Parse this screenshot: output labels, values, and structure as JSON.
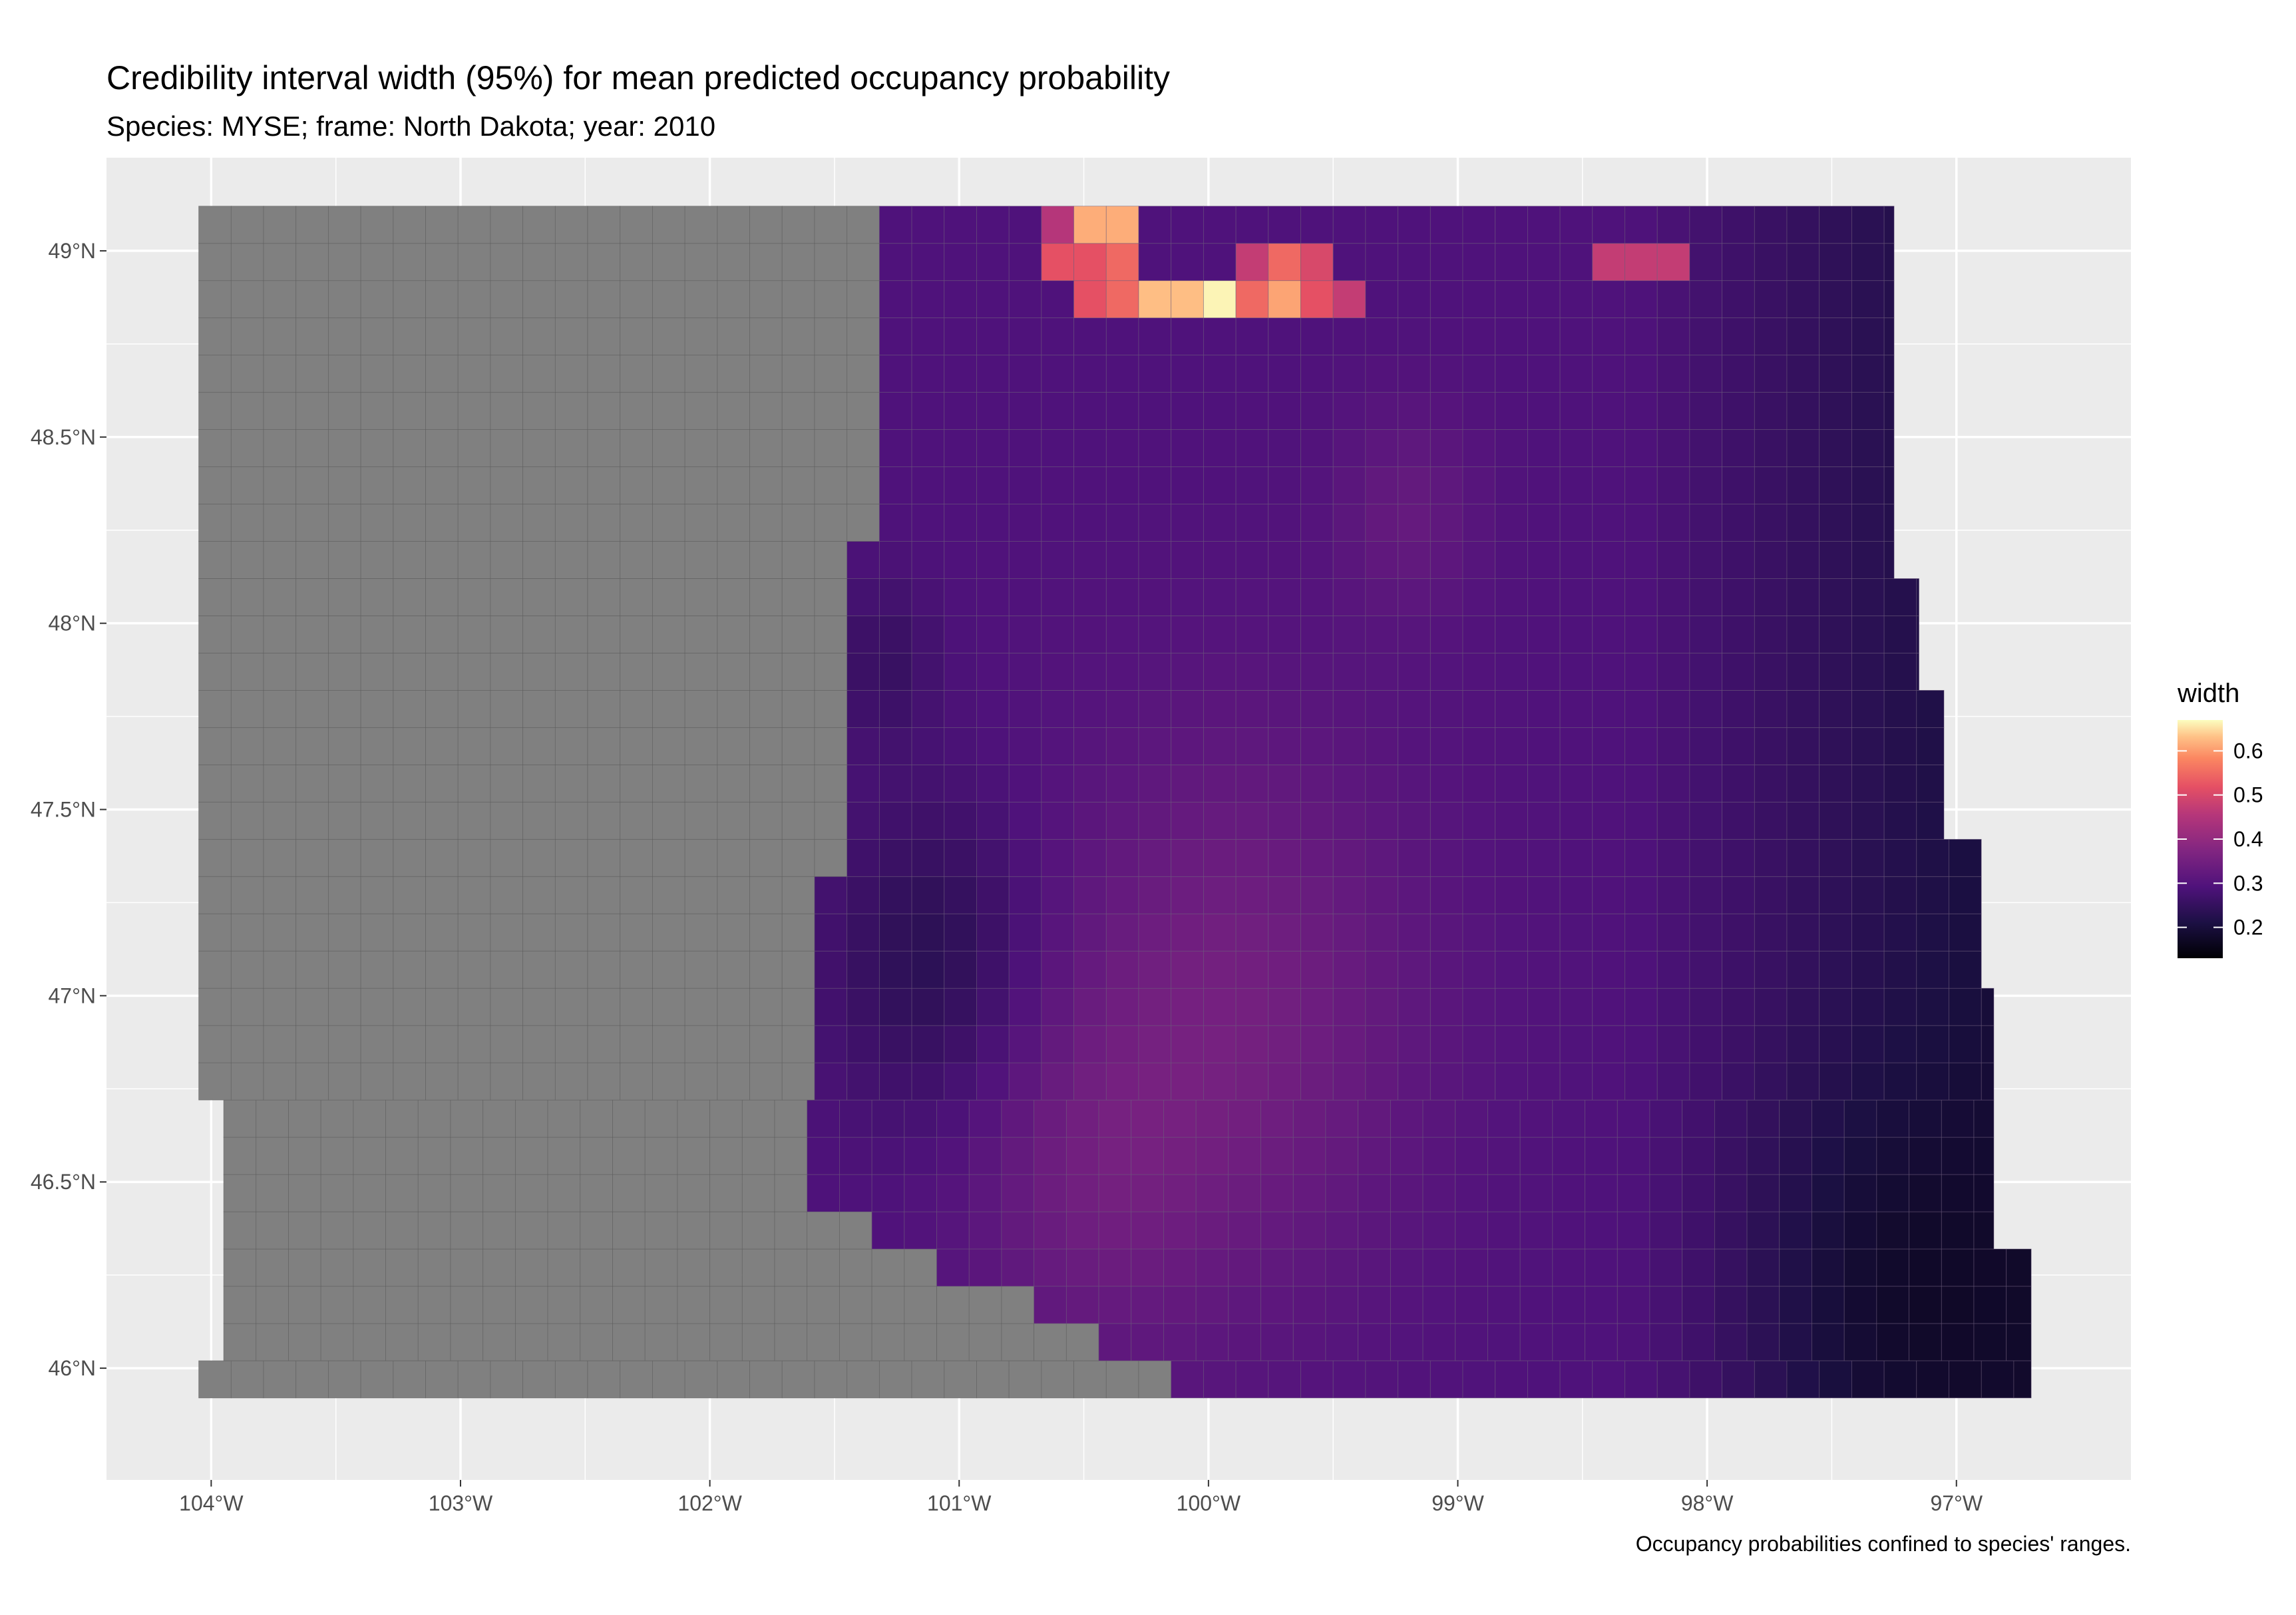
{
  "chart_data": {
    "type": "heatmap",
    "title": "Credibility interval width (95%) for mean predicted occupancy probability",
    "subtitle": "Species: MYSE; frame: North Dakota; year: 2010",
    "caption": "Occupancy probabilities confined to species' ranges.",
    "x_ticks": [
      "104°W",
      "103°W",
      "102°W",
      "101°W",
      "100°W",
      "99°W",
      "98°W",
      "97°W"
    ],
    "x_tick_values": [
      -104,
      -103,
      -102,
      -101,
      -100,
      -99,
      -98,
      -97
    ],
    "y_ticks": [
      "46°N",
      "46.5°N",
      "47°N",
      "47.5°N",
      "48°N",
      "48.5°N",
      "49°N"
    ],
    "y_tick_values": [
      46,
      46.5,
      47,
      47.5,
      48,
      48.5,
      49
    ],
    "xlim": [
      -104.42,
      -96.3
    ],
    "ylim": [
      45.7,
      49.25
    ],
    "grid": true,
    "legend": {
      "title": "width",
      "position": "right",
      "ticks": [
        "0.2",
        "0.3",
        "0.4",
        "0.5",
        "0.6"
      ],
      "tick_values": [
        0.2,
        0.3,
        0.4,
        0.5,
        0.6
      ],
      "range": [
        0.13,
        0.67
      ],
      "colormap": "magma"
    },
    "no_range_color": "#808080",
    "panel_background": "#ebebeb",
    "grid_color": "#ffffff",
    "west_gray_boundary_lon": -101.4,
    "hotspots": [
      {
        "lon": -100.42,
        "lat": 49.05,
        "width": 0.58
      },
      {
        "lon": -100.6,
        "lat": 49.05,
        "width": 0.4
      },
      {
        "lon": -100.55,
        "lat": 48.96,
        "width": 0.47
      },
      {
        "lon": -100.3,
        "lat": 48.96,
        "width": 0.5
      },
      {
        "lon": -100.45,
        "lat": 48.87,
        "width": 0.47
      },
      {
        "lon": -100.3,
        "lat": 48.87,
        "width": 0.5
      },
      {
        "lon": -100.15,
        "lat": 48.87,
        "width": 0.6
      },
      {
        "lon": -100.0,
        "lat": 48.87,
        "width": 0.66
      },
      {
        "lon": -99.85,
        "lat": 48.87,
        "width": 0.5
      },
      {
        "lon": -99.7,
        "lat": 48.87,
        "width": 0.57
      },
      {
        "lon": -99.55,
        "lat": 48.87,
        "width": 0.47
      },
      {
        "lon": -99.45,
        "lat": 48.87,
        "width": 0.42
      },
      {
        "lon": -99.85,
        "lat": 48.96,
        "width": 0.42
      },
      {
        "lon": -99.7,
        "lat": 48.96,
        "width": 0.5
      },
      {
        "lon": -99.55,
        "lat": 48.96,
        "width": 0.45
      },
      {
        "lon": -98.4,
        "lat": 49.0,
        "width": 0.42
      },
      {
        "lon": -98.2,
        "lat": 49.0,
        "width": 0.42
      }
    ]
  }
}
